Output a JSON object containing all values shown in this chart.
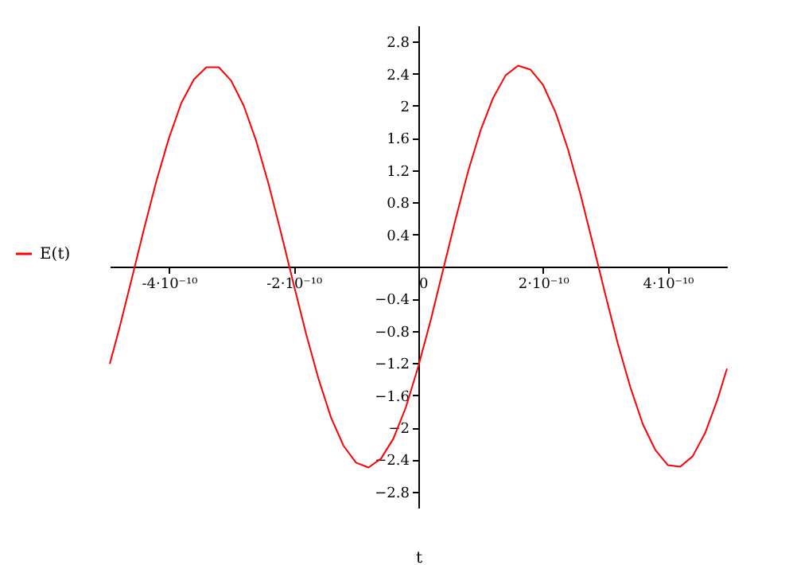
{
  "chart_data": {
    "type": "line",
    "xlabel": "t",
    "x": [
      -4.95e-10,
      -4.8e-10,
      -4.6e-10,
      -4.4e-10,
      -4.2e-10,
      -4e-10,
      -3.8e-10,
      -3.6e-10,
      -3.4e-10,
      -3.2e-10,
      -3e-10,
      -2.8e-10,
      -2.6e-10,
      -2.4e-10,
      -2.2e-10,
      -2e-10,
      -1.8e-10,
      -1.6e-10,
      -1.4e-10,
      -1.2e-10,
      -1e-10,
      -8e-11,
      -6e-11,
      -4e-11,
      -2e-11,
      0,
      2e-11,
      4e-11,
      6e-11,
      8e-11,
      1e-10,
      1.2e-10,
      1.4e-10,
      1.6e-10,
      1.8e-10,
      2e-10,
      2.2e-10,
      2.4e-10,
      2.6e-10,
      2.8e-10,
      3e-10,
      3.2e-10,
      3.4e-10,
      3.6e-10,
      3.8e-10,
      4e-10,
      4.2e-10,
      4.4e-10,
      4.6e-10,
      4.8e-10,
      4.95e-10
    ],
    "series": [
      {
        "name": "E(t)",
        "color": "#ff0000",
        "values": [
          -1.21,
          -0.78,
          -0.16,
          0.47,
          1.07,
          1.6,
          2.04,
          2.33,
          2.48,
          2.48,
          2.31,
          2.0,
          1.56,
          1.02,
          0.41,
          -0.22,
          -0.84,
          -1.4,
          -1.88,
          -2.23,
          -2.44,
          -2.5,
          -2.39,
          -2.14,
          -1.75,
          -1.24,
          -0.66,
          -0.03,
          0.6,
          1.19,
          1.7,
          2.1,
          2.38,
          2.5,
          2.45,
          2.26,
          1.92,
          1.46,
          0.9,
          0.28,
          -0.35,
          -0.96,
          -1.5,
          -1.96,
          -2.28,
          -2.47,
          -2.49,
          -2.36,
          -2.07,
          -1.65,
          -1.27
        ]
      }
    ],
    "xlim": [
      -4.95e-10,
      4.95e-10
    ],
    "ylim": [
      -3,
      3
    ],
    "xticks": [
      {
        "value": -4e-10,
        "label": "-4·10⁻¹⁰"
      },
      {
        "value": -2e-10,
        "label": "-2·10⁻¹⁰"
      },
      0,
      {
        "value": 2e-10,
        "label": "2·10⁻¹⁰"
      },
      {
        "value": 4e-10,
        "label": "4·10⁻¹⁰"
      }
    ],
    "yticks": [
      -2.8,
      -2.4,
      -2,
      -1.6,
      -1.2,
      -0.8,
      -0.4,
      0.4,
      0.8,
      1.2,
      1.6,
      2,
      2.4,
      2.8
    ],
    "grid": false,
    "legend": "left",
    "marker": "none",
    "line_style": "solid"
  }
}
